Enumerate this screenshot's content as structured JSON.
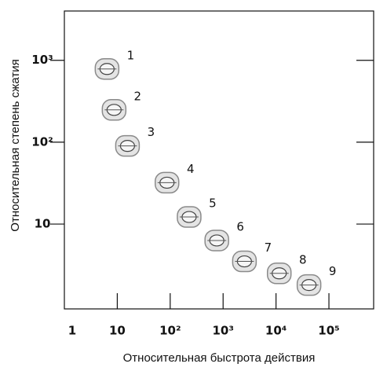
{
  "chart_data": {
    "type": "scatter",
    "x_label": "Относительная быстрота действия",
    "y_label": "Относительная степень сжатия",
    "xscale": "log",
    "yscale": "log",
    "xlim": [
      1,
      700000
    ],
    "ylim": [
      0.92,
      4000
    ],
    "xticks": [
      1,
      10,
      {
        "value": 100,
        "label": "10²"
      },
      {
        "value": 1000,
        "label": "10³"
      },
      {
        "value": 10000,
        "label": "10⁴"
      },
      {
        "value": 100000,
        "label": "10⁵"
      }
    ],
    "yticks": [
      10,
      {
        "value": 100,
        "label": "10²"
      },
      {
        "value": 1000,
        "label": "10³"
      }
    ],
    "labels": [
      "1",
      "2",
      "3",
      "4",
      "5",
      "6",
      "7",
      "8",
      "9"
    ],
    "x": [
      6.4,
      8.7,
      15.6,
      87,
      228,
      760,
      2530,
      11500,
      42000
    ],
    "values": [
      783,
      248,
      90,
      32,
      12.2,
      6.3,
      3.5,
      2.5,
      1.8
    ],
    "color": "#8a8a8a"
  }
}
